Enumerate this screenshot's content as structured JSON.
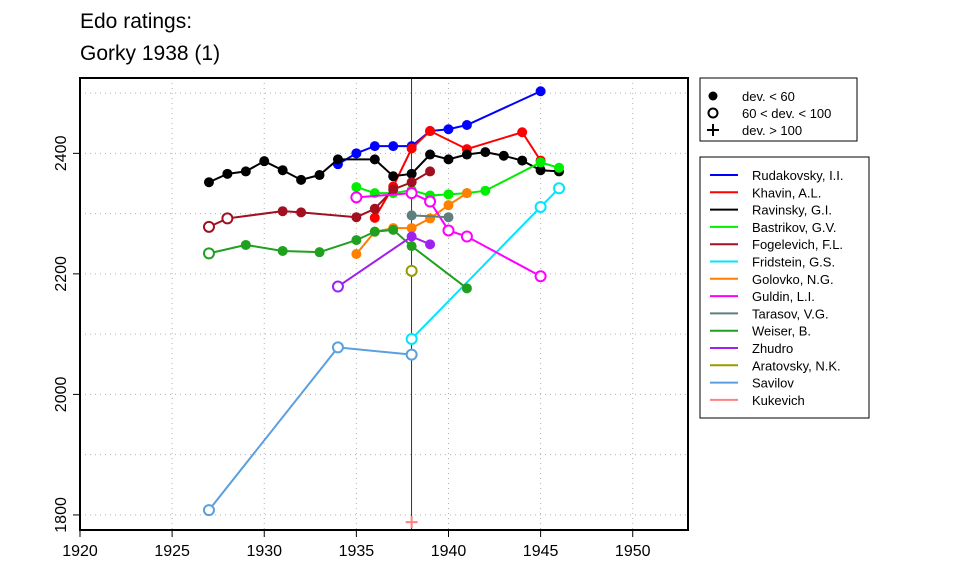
{
  "chart_data": {
    "type": "line",
    "title_lines": [
      "Edo ratings:",
      "Gorky 1938 (1)"
    ],
    "xlabel": "",
    "ylabel": "",
    "xlim": [
      1920,
      1953
    ],
    "ylim": [
      1775,
      2525
    ],
    "xticks": [
      1920,
      1925,
      1930,
      1935,
      1940,
      1945,
      1950
    ],
    "yticks": [
      1800,
      2000,
      2200,
      2400
    ],
    "grid": true,
    "event_year": 1938,
    "marker_legend": {
      "position": "top-right",
      "items": [
        {
          "symbol": "filled-circle",
          "label": "dev. < 60"
        },
        {
          "symbol": "open-circle",
          "label": "60 < dev. < 100"
        },
        {
          "symbol": "plus",
          "label": "dev. > 100"
        }
      ]
    },
    "series": [
      {
        "name": "Rudakovsky, I.I.",
        "color": "#0000ff",
        "points": [
          [
            1934,
            2382,
            "f"
          ],
          [
            1935,
            2400,
            "f"
          ],
          [
            1936,
            2412,
            "f"
          ],
          [
            1937,
            2412,
            "f"
          ],
          [
            1938,
            2412,
            "f"
          ],
          [
            1939,
            2437,
            "f"
          ],
          [
            1940,
            2440,
            "f"
          ],
          [
            1941,
            2447,
            "f"
          ],
          [
            1945,
            2503,
            "f"
          ]
        ]
      },
      {
        "name": "Khavin, A.L.",
        "color": "#ff0000",
        "points": [
          [
            1936,
            2293,
            "f"
          ],
          [
            1937,
            2345,
            "f"
          ],
          [
            1938,
            2408,
            "f"
          ],
          [
            1939,
            2437,
            "f"
          ],
          [
            1941,
            2407,
            "f"
          ],
          [
            1944,
            2435,
            "f"
          ],
          [
            1945,
            2388,
            "f"
          ]
        ]
      },
      {
        "name": "Ravinsky, G.I.",
        "color": "#000000",
        "points": [
          [
            1927,
            2352,
            "f"
          ],
          [
            1928,
            2366,
            "f"
          ],
          [
            1929,
            2370,
            "f"
          ],
          [
            1930,
            2387,
            "f"
          ],
          [
            1931,
            2372,
            "f"
          ],
          [
            1932,
            2356,
            "f"
          ],
          [
            1933,
            2364,
            "f"
          ],
          [
            1934,
            2390,
            "f"
          ],
          [
            1936,
            2390,
            "f"
          ],
          [
            1937,
            2362,
            "f"
          ],
          [
            1938,
            2366,
            "f"
          ],
          [
            1939,
            2398,
            "f"
          ],
          [
            1940,
            2390,
            "f"
          ],
          [
            1941,
            2398,
            "f"
          ],
          [
            1942,
            2402,
            "f"
          ],
          [
            1943,
            2396,
            "f"
          ],
          [
            1944,
            2388,
            "f"
          ],
          [
            1945,
            2372,
            "f"
          ],
          [
            1946,
            2370,
            "f"
          ]
        ]
      },
      {
        "name": "Bastrikov, G.V.",
        "color": "#00ee00",
        "points": [
          [
            1935,
            2344,
            "f"
          ],
          [
            1936,
            2334,
            "f"
          ],
          [
            1937,
            2334,
            "f"
          ],
          [
            1938,
            2339,
            "f"
          ],
          [
            1939,
            2330,
            "f"
          ],
          [
            1940,
            2332,
            "f"
          ],
          [
            1941,
            2334,
            "f"
          ],
          [
            1942,
            2338,
            "f"
          ],
          [
            1945,
            2385,
            "f"
          ],
          [
            1946,
            2376,
            "f"
          ]
        ]
      },
      {
        "name": "Fogelevich, F.L.",
        "color": "#a01020",
        "points": [
          [
            1927,
            2278,
            "o"
          ],
          [
            1928,
            2292,
            "o"
          ],
          [
            1931,
            2304,
            "f"
          ],
          [
            1932,
            2302,
            "f"
          ],
          [
            1935,
            2294,
            "f"
          ],
          [
            1936,
            2308,
            "f"
          ],
          [
            1937,
            2340,
            "f"
          ],
          [
            1938,
            2352,
            "f"
          ],
          [
            1939,
            2370,
            "f"
          ]
        ]
      },
      {
        "name": "Fridstein, G.S.",
        "color": "#00e5ff",
        "points": [
          [
            1938,
            2092,
            "o"
          ],
          [
            1945,
            2311,
            "o"
          ],
          [
            1946,
            2342,
            "o"
          ]
        ]
      },
      {
        "name": "Golovko, N.G.",
        "color": "#ff7f00",
        "points": [
          [
            1935,
            2233,
            "f"
          ],
          [
            1936,
            2270,
            "f"
          ],
          [
            1937,
            2276,
            "f"
          ],
          [
            1938,
            2276,
            "f"
          ],
          [
            1939,
            2292,
            "f"
          ],
          [
            1940,
            2314,
            "f"
          ],
          [
            1941,
            2334,
            "f"
          ]
        ]
      },
      {
        "name": "Guldin, L.I.",
        "color": "#ff00ff",
        "points": [
          [
            1935,
            2327,
            "o"
          ],
          [
            1938,
            2334,
            "o"
          ],
          [
            1939,
            2320,
            "o"
          ],
          [
            1940,
            2272,
            "o"
          ],
          [
            1941,
            2262,
            "o"
          ],
          [
            1945,
            2196,
            "o"
          ]
        ]
      },
      {
        "name": "Tarasov, V.G.",
        "color": "#5f7f7f",
        "points": [
          [
            1938,
            2297,
            "f"
          ],
          [
            1940,
            2294,
            "f"
          ]
        ]
      },
      {
        "name": "Weiser, B.",
        "color": "#1fa01f",
        "points": [
          [
            1927,
            2234,
            "o"
          ],
          [
            1929,
            2248,
            "f"
          ],
          [
            1931,
            2238,
            "f"
          ],
          [
            1933,
            2236,
            "f"
          ],
          [
            1935,
            2256,
            "f"
          ],
          [
            1936,
            2270,
            "f"
          ],
          [
            1937,
            2273,
            "f"
          ],
          [
            1938,
            2246,
            "f"
          ],
          [
            1941,
            2176,
            "f"
          ]
        ]
      },
      {
        "name": "Zhudro",
        "color": "#a020f0",
        "points": [
          [
            1934,
            2179,
            "o"
          ],
          [
            1938,
            2262,
            "f"
          ],
          [
            1939,
            2249,
            "f"
          ]
        ]
      },
      {
        "name": "Aratovsky, N.K.",
        "color": "#999900",
        "points": [
          [
            1938,
            2205,
            "o"
          ]
        ]
      },
      {
        "name": "Savilov",
        "color": "#5aa0e0",
        "points": [
          [
            1927,
            1808,
            "o"
          ],
          [
            1934,
            2078,
            "o"
          ],
          [
            1938,
            2066,
            "o"
          ]
        ]
      },
      {
        "name": "Kukevich",
        "color": "#ff8080",
        "points": [
          [
            1938,
            1788,
            "p"
          ]
        ]
      }
    ]
  }
}
